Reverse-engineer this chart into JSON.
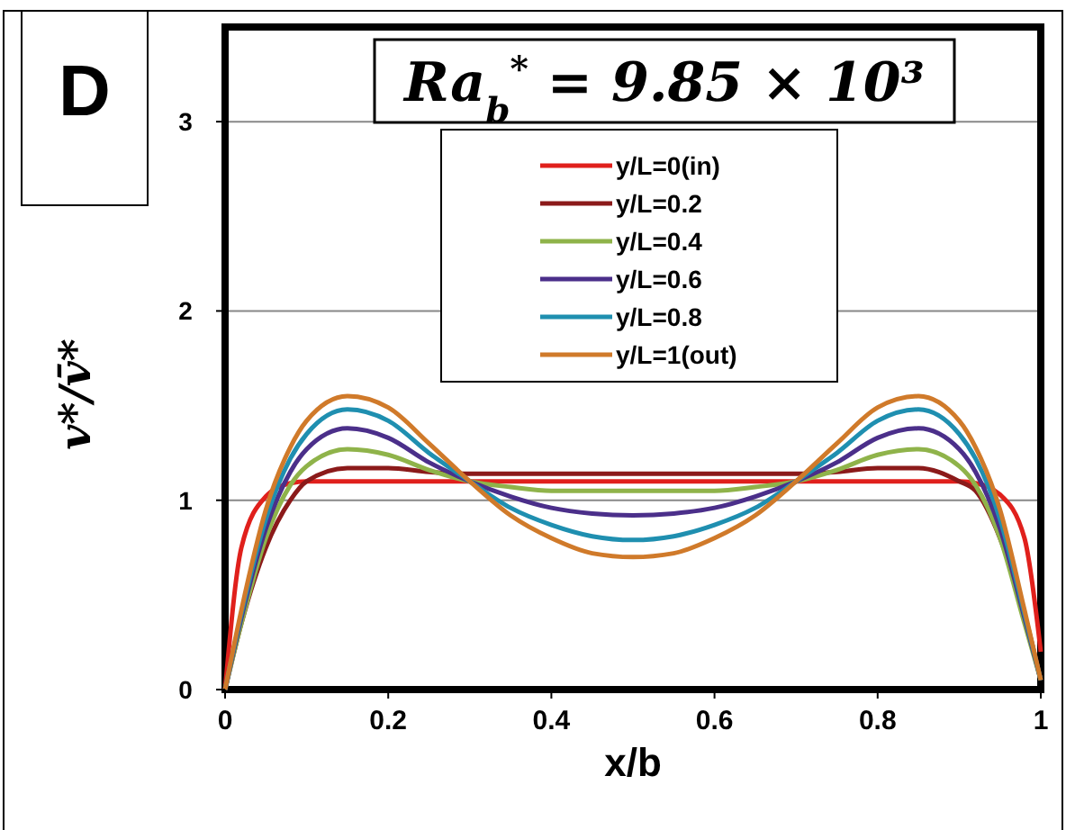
{
  "chart_data": {
    "type": "line",
    "title": "Ra$_{b}$$^{*}$ = 9.85 × 10³",
    "xlabel": "x/b",
    "ylabel": "v*/v̄*",
    "annotations": [
      "D"
    ],
    "x": [
      0,
      0.02,
      0.05,
      0.08,
      0.1,
      0.15,
      0.2,
      0.25,
      0.3,
      0.35,
      0.4,
      0.45,
      0.5,
      0.55,
      0.6,
      0.65,
      0.7,
      0.75,
      0.8,
      0.85,
      0.9,
      0.92,
      0.95,
      0.98,
      1
    ],
    "series": [
      {
        "name": "y/L=0(in)",
        "color": "#e0201c",
        "values": [
          0,
          0.75,
          1.02,
          1.09,
          1.1,
          1.1,
          1.1,
          1.1,
          1.1,
          1.1,
          1.1,
          1.1,
          1.1,
          1.1,
          1.1,
          1.1,
          1.1,
          1.1,
          1.1,
          1.1,
          1.1,
          1.09,
          1.03,
          0.8,
          0.2
        ]
      },
      {
        "name": "y/L=0.2",
        "color": "#8b1a1a",
        "values": [
          0,
          0.35,
          0.75,
          1.0,
          1.1,
          1.17,
          1.17,
          1.15,
          1.14,
          1.14,
          1.14,
          1.14,
          1.14,
          1.14,
          1.14,
          1.14,
          1.14,
          1.15,
          1.17,
          1.17,
          1.1,
          1.05,
          0.8,
          0.4,
          0.05
        ]
      },
      {
        "name": "y/L=0.4",
        "color": "#8fb34a",
        "values": [
          0,
          0.35,
          0.8,
          1.08,
          1.18,
          1.27,
          1.24,
          1.16,
          1.1,
          1.07,
          1.05,
          1.05,
          1.05,
          1.05,
          1.05,
          1.07,
          1.1,
          1.16,
          1.24,
          1.27,
          1.18,
          1.08,
          0.8,
          0.35,
          0.05
        ]
      },
      {
        "name": "y/L=0.6",
        "color": "#4b2f8a",
        "values": [
          0,
          0.38,
          0.85,
          1.15,
          1.27,
          1.38,
          1.33,
          1.2,
          1.1,
          1.02,
          0.96,
          0.93,
          0.92,
          0.93,
          0.96,
          1.02,
          1.1,
          1.2,
          1.33,
          1.38,
          1.27,
          1.15,
          0.85,
          0.38,
          0.05
        ]
      },
      {
        "name": "y/L=0.8",
        "color": "#1f8fb0",
        "values": [
          0,
          0.4,
          0.9,
          1.22,
          1.35,
          1.48,
          1.42,
          1.25,
          1.1,
          0.96,
          0.87,
          0.81,
          0.79,
          0.81,
          0.87,
          0.96,
          1.1,
          1.25,
          1.42,
          1.48,
          1.35,
          1.22,
          0.9,
          0.4,
          0.05
        ]
      },
      {
        "name": "y/L=1(out)",
        "color": "#d07a2a",
        "values": [
          0,
          0.42,
          0.95,
          1.28,
          1.42,
          1.55,
          1.49,
          1.3,
          1.1,
          0.92,
          0.8,
          0.72,
          0.7,
          0.72,
          0.8,
          0.92,
          1.1,
          1.3,
          1.49,
          1.55,
          1.42,
          1.28,
          0.95,
          0.42,
          0.05
        ]
      }
    ],
    "xlim": [
      0,
      1
    ],
    "xticks": [
      0,
      0.2,
      0.4,
      0.6,
      0.8,
      1
    ],
    "ylim": [
      0,
      3.5
    ],
    "yticks": [
      0,
      1,
      2,
      3
    ],
    "grid": "y",
    "legend": "top",
    "marker": "none",
    "line_style": "solid"
  }
}
